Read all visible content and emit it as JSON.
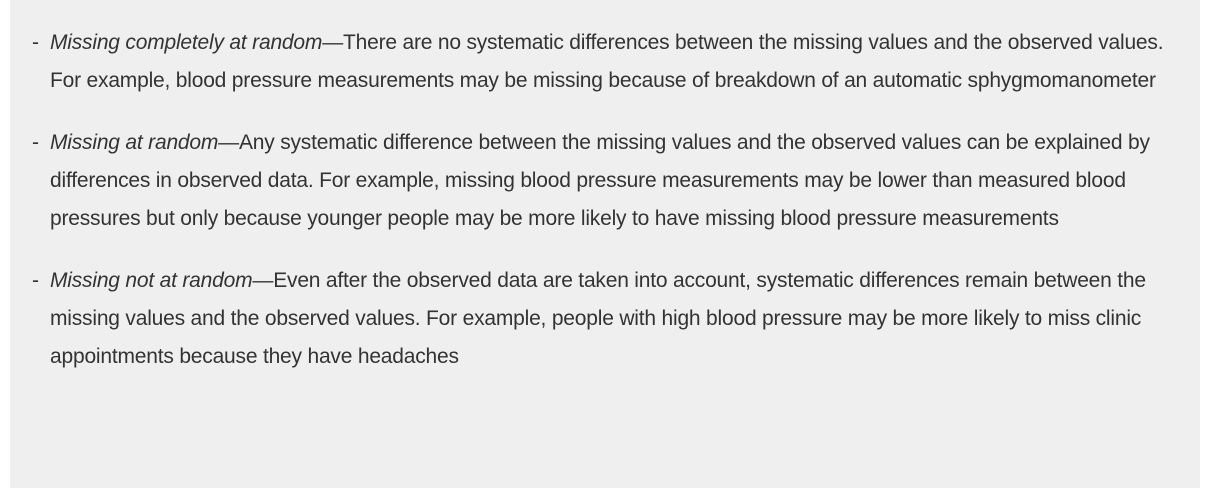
{
  "list": {
    "bullet": "-",
    "items": [
      {
        "term": "Missing completely at random",
        "text": "—There are no systematic differences between the missing values and the observed values. For example, blood pressure measurements may be missing because of breakdown of an automatic sphygmomanometer"
      },
      {
        "term": "Missing at random",
        "text": "—Any systematic difference between the missing values and the observed values can be explained by differences in observed data. For example, missing blood pressure measurements may be lower than measured blood pressures but only because younger people may be more likely to have missing blood pressure measurements"
      },
      {
        "term": "Missing not at random",
        "text": "—Even after the observed data are taken into account, systematic differences remain between the missing values and the observed values. For example, people with high blood pressure may be more likely to miss clinic appointments because they have headaches"
      }
    ]
  }
}
